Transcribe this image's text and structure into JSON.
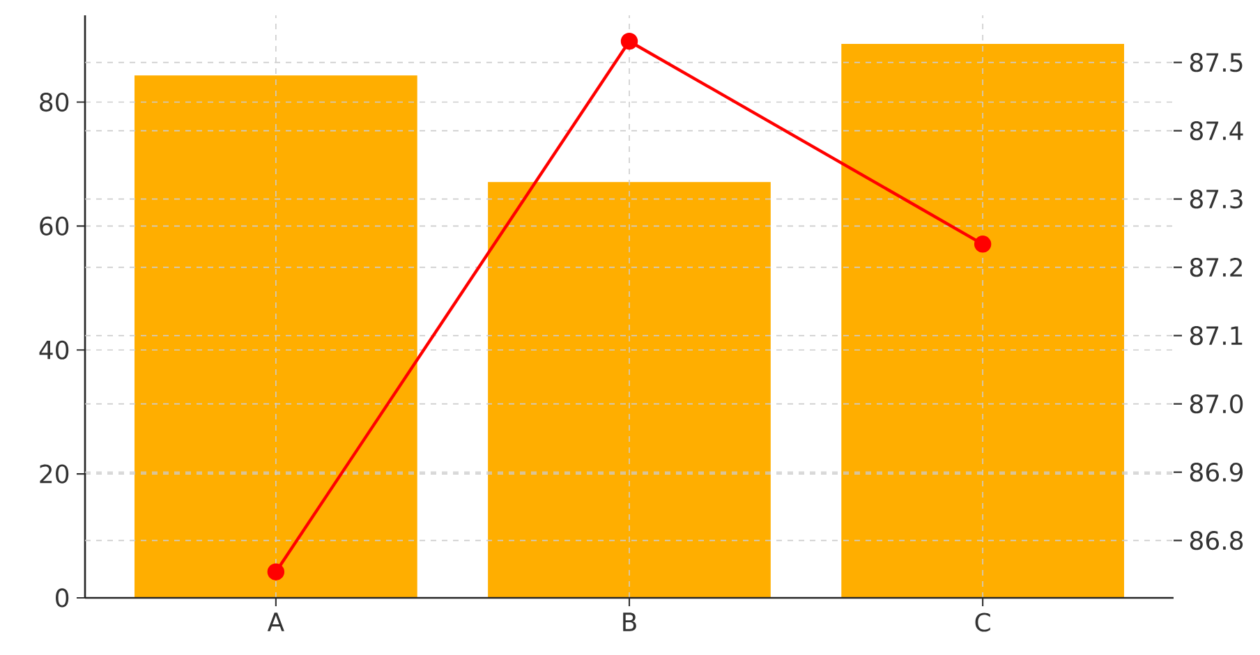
{
  "chart_data": {
    "type": "bar",
    "categories": [
      "A",
      "B",
      "C"
    ],
    "series": [
      {
        "color": "#ffae00",
        "values": [
          84.3,
          67.1,
          89.4
        ]
      },
      {
        "type": "line",
        "axis": "y2",
        "color": "#ff0000",
        "marker": "circle",
        "values": [
          86.754,
          87.531,
          87.234
        ]
      }
    ],
    "ylim": [
      0,
      94
    ],
    "yticks": [
      0,
      20,
      40,
      60,
      80
    ],
    "y2lim": [
      86.716,
      87.569
    ],
    "y2ticks": [
      86.8,
      86.9,
      {
        "value": 87.0,
        "label": "87.0"
      },
      87.1,
      87.2,
      87.3,
      87.4,
      87.5
    ],
    "grid": true
  }
}
